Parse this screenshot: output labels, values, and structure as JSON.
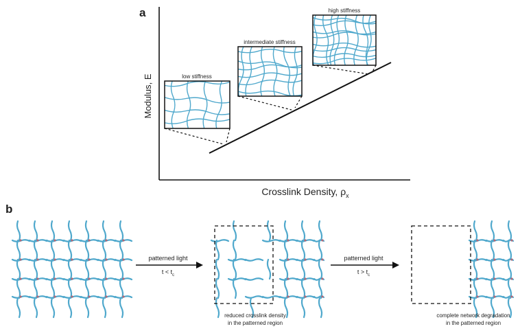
{
  "panel_a": {
    "label": "a",
    "y_axis": "Modulus, E",
    "x_axis": {
      "text": "Crosslink Density, ρ",
      "subscript": "x"
    },
    "insets": [
      {
        "label": "low stiffness"
      },
      {
        "label": "intermediate stiffness"
      },
      {
        "label": "high stiffness"
      }
    ]
  },
  "panel_b": {
    "label": "b",
    "steps": [
      {
        "arrow_label": "patterned light",
        "condition": {
          "text": "t < t",
          "subscript": "c"
        }
      },
      {
        "arrow_label": "patterned light",
        "condition": {
          "text": "t > t",
          "subscript": "c"
        }
      }
    ],
    "captions": [
      {
        "lines": [
          "reduced crosslink density",
          "in the patterned region"
        ]
      },
      {
        "lines": [
          "complete network degradation",
          "in the patterned region"
        ]
      }
    ]
  }
}
